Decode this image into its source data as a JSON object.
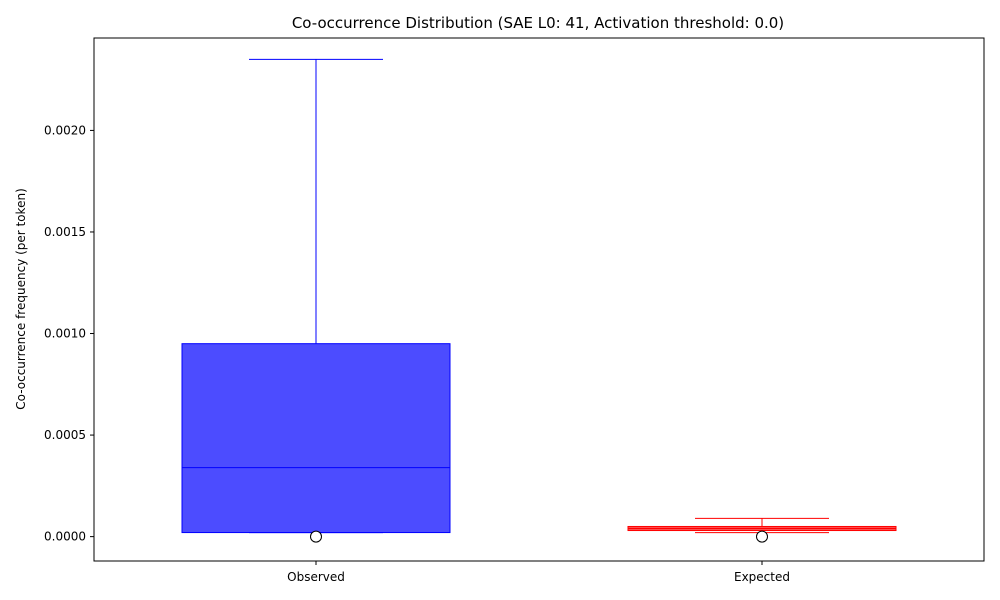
{
  "chart_data": {
    "type": "box",
    "title": "Co-occurrence Distribution (SAE L0: 41, Activation threshold: 0.0)",
    "xlabel": "",
    "ylabel": "Co-occurrence frequency (per token)",
    "ylim": [
      -0.00012,
      0.002455
    ],
    "yticks": [
      "0.0000",
      "0.0005",
      "0.0010",
      "0.0015",
      "0.0020"
    ],
    "ytick_values": [
      0.0,
      0.0005,
      0.001,
      0.0015,
      0.002
    ],
    "grid": false,
    "categories": [
      "Observed",
      "Expected"
    ],
    "series": [
      {
        "category": "Observed",
        "color": "#0000ff",
        "whisker_low": 2e-05,
        "q1": 2e-05,
        "median": 0.00034,
        "q3": 0.00095,
        "whisker_high": 0.00235,
        "outliers": [
          0.0
        ]
      },
      {
        "category": "Expected",
        "color": "#ff0000",
        "whisker_low": 2e-05,
        "q1": 3e-05,
        "median": 4e-05,
        "q3": 5e-05,
        "whisker_high": 9e-05,
        "outliers": [
          0.0
        ]
      }
    ]
  }
}
